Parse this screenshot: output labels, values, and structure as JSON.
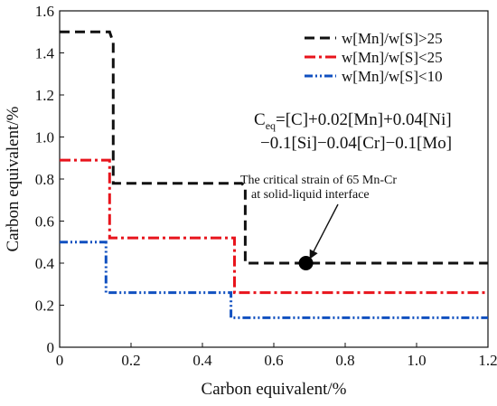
{
  "chart_data": {
    "type": "line",
    "xlabel": "Carbon equivalent/%",
    "ylabel": "Carbon equivalent/%",
    "xlim": [
      0,
      1.2
    ],
    "ylim": [
      0,
      1.6
    ],
    "xticks": [
      "0",
      "0.2",
      "0.4",
      "0.6",
      "0.8",
      "1.0",
      "1.2"
    ],
    "yticks": [
      "0",
      "0.2",
      "0.4",
      "0.6",
      "0.8",
      "1.0",
      "1.2",
      "1.4",
      "1.6"
    ],
    "grid": false,
    "legend_position": "top-right",
    "series": [
      {
        "name": "w[Mn]/w[S]>25",
        "color": "#111111",
        "style": "dashed",
        "x": [
          0,
          0.14,
          0.15,
          0.15,
          0.51,
          0.52,
          0.52,
          1.2
        ],
        "y": [
          1.5,
          1.5,
          1.45,
          0.78,
          0.78,
          0.76,
          0.4,
          0.4
        ]
      },
      {
        "name": "w[Mn]/w[S]<25",
        "color": "#e8141c",
        "style": "dash-dot",
        "x": [
          0,
          0.14,
          0.14,
          0.49,
          0.49,
          1.2
        ],
        "y": [
          0.89,
          0.89,
          0.52,
          0.52,
          0.26,
          0.26
        ]
      },
      {
        "name": "w[Mn]/w[S]<10",
        "color": "#1150c0",
        "style": "dash-dot-dot",
        "x": [
          0,
          0.13,
          0.13,
          0.48,
          0.48,
          1.2
        ],
        "y": [
          0.5,
          0.5,
          0.26,
          0.26,
          0.14,
          0.14
        ]
      }
    ],
    "marker_point": {
      "x": 0.69,
      "y": 0.4,
      "color": "#000000"
    },
    "formula": {
      "line1_prefix": "C",
      "line1_sub": "eq",
      "line1_rest": "=[C]+0.02[Mn]+0.04[Ni]",
      "line2": "−0.1[Si]−0.04[Cr]−0.1[Mo]"
    },
    "annotation": {
      "line1": "The critical strain of 65 Mn-Cr",
      "line2": "at solid-liquid interface"
    }
  }
}
